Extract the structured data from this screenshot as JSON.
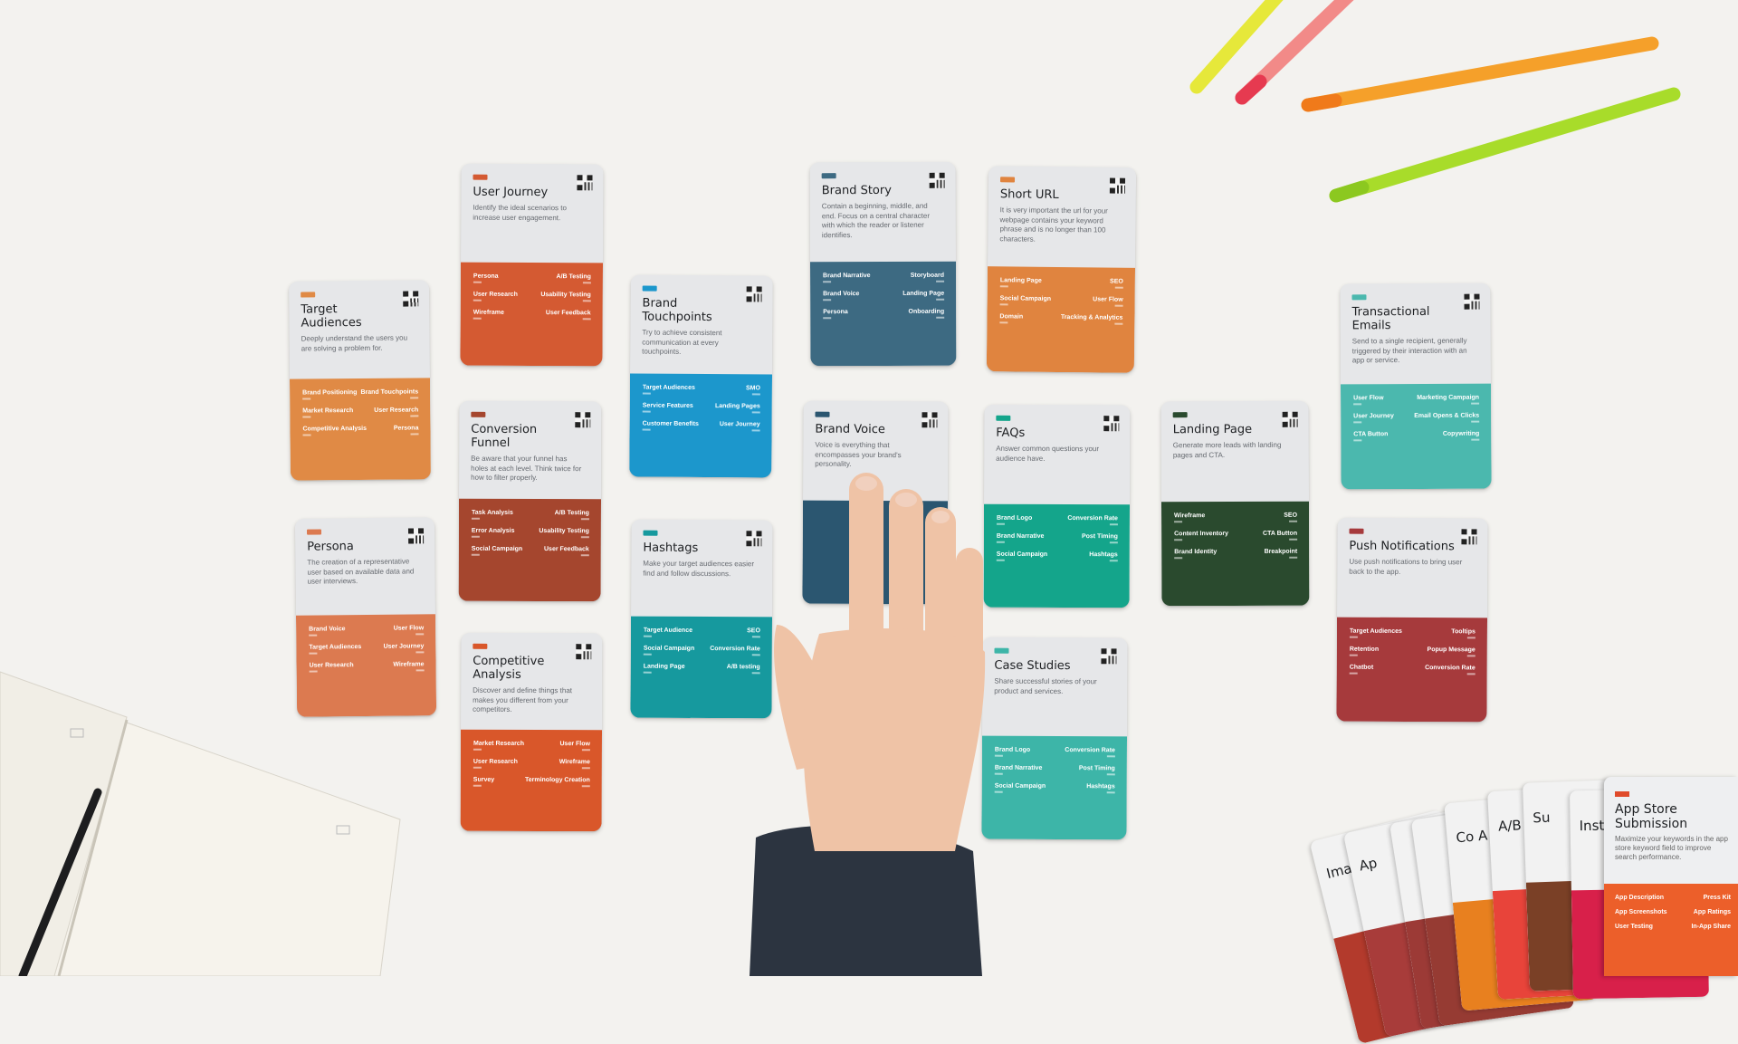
{
  "scene": {
    "background": "#f3f2ef",
    "description_objects": [
      "cards",
      "hand",
      "notebook",
      "pens",
      "card-fan"
    ]
  },
  "cards": [
    {
      "id": "target-audiences",
      "title": "Target Audiences",
      "desc": "Deeply understand the users you are solving a problem for.",
      "color": "#e08a45",
      "items": [
        [
          "Brand Positioning",
          "Brand Touchpoints"
        ],
        [
          "Market Research",
          "User Research"
        ],
        [
          "Competitive Analysis",
          "Persona"
        ]
      ]
    },
    {
      "id": "user-journey",
      "title": "User Journey",
      "desc": "Identify the ideal scenarios to increase user engagement.",
      "color": "#d45a32",
      "items": [
        [
          "Persona",
          "A/B Testing"
        ],
        [
          "User Research",
          "Usability Testing"
        ],
        [
          "Wireframe",
          "User Feedback"
        ]
      ]
    },
    {
      "id": "persona",
      "title": "Persona",
      "desc": "The creation of a representative user based on available data and user interviews.",
      "color": "#dc7a50",
      "items": [
        [
          "Brand Voice",
          "User Flow"
        ],
        [
          "Target Audiences",
          "User Journey"
        ],
        [
          "User Research",
          "Wireframe"
        ]
      ]
    },
    {
      "id": "conversion-funnel",
      "title": "Conversion Funnel",
      "desc": "Be aware that your funnel has holes at each level. Think twice for how to filter properly.",
      "color": "#a5462e",
      "items": [
        [
          "Task Analysis",
          "A/B Testing"
        ],
        [
          "Error Analysis",
          "Usability Testing"
        ],
        [
          "Social Campaign",
          "User Feedback"
        ]
      ]
    },
    {
      "id": "competitive-analysis",
      "title": "Competitive Analysis",
      "desc": "Discover and define things that makes you different from your competitors.",
      "color": "#d9572a",
      "items": [
        [
          "Market Research",
          "User Flow"
        ],
        [
          "User Research",
          "Wireframe"
        ],
        [
          "Survey",
          "Terminology Creation"
        ]
      ]
    },
    {
      "id": "brand-touchpoints",
      "title": "Brand Touchpoints",
      "desc": "Try to achieve consistent communication at every touchpoints.",
      "color": "#1c97cc",
      "items": [
        [
          "Target Audiences",
          "SMO"
        ],
        [
          "Service Features",
          "Landing Pages"
        ],
        [
          "Customer Benefits",
          "User Journey"
        ]
      ]
    },
    {
      "id": "hashtags",
      "title": "Hashtags",
      "desc": "Make your target audiences easier find and follow discussions.",
      "color": "#16999e",
      "items": [
        [
          "Target Audience",
          "SEO"
        ],
        [
          "Social Campaign",
          "Conversion Rate"
        ],
        [
          "Landing Page",
          "A/B testing"
        ]
      ]
    },
    {
      "id": "brand-story",
      "title": "Brand Story",
      "desc": "Contain a beginning, middle, and end. Focus on a central character with which the reader or listener identifies.",
      "color": "#3d6a82",
      "items": [
        [
          "Brand Narrative",
          "Storyboard"
        ],
        [
          "Brand Voice",
          "Landing Page"
        ],
        [
          "Persona",
          "Onboarding"
        ]
      ]
    },
    {
      "id": "brand-voice",
      "title": "Brand Voice",
      "desc": "Voice is everything that encompasses your brand's personality.",
      "color": "#2b5670",
      "items": []
    },
    {
      "id": "short-url",
      "title": "Short URL",
      "desc": "It is very important the url for your webpage contains your keyword phrase and is no longer than 100 characters.",
      "color": "#e0843f",
      "items": [
        [
          "Landing Page",
          "SEO"
        ],
        [
          "Social Campaign",
          "User Flow"
        ],
        [
          "Domain",
          "Tracking & Analytics"
        ]
      ]
    },
    {
      "id": "faqs",
      "title": "FAQs",
      "desc": "Answer common questions your audience have.",
      "color": "#14a58b",
      "items": [
        [
          "Brand Logo",
          "Conversion Rate"
        ],
        [
          "Brand Narrative",
          "Post Timing"
        ],
        [
          "Social Campaign",
          "Hashtags"
        ]
      ]
    },
    {
      "id": "case-studies",
      "title": "Case Studies",
      "desc": "Share successful stories of your product and services.",
      "color": "#3db5a8",
      "items": [
        [
          "Brand Logo",
          "Conversion Rate"
        ],
        [
          "Brand Narrative",
          "Post Timing"
        ],
        [
          "Social Campaign",
          "Hashtags"
        ]
      ]
    },
    {
      "id": "landing-page",
      "title": "Landing Page",
      "desc": "Generate more leads with landing pages and CTA.",
      "color": "#2a4a2e",
      "items": [
        [
          "Wireframe",
          "SEO"
        ],
        [
          "Content Inventory",
          "CTA Button"
        ],
        [
          "Brand Identity",
          "Breakpoint"
        ]
      ]
    },
    {
      "id": "transactional-emails",
      "title": "Transactional Emails",
      "desc": "Send to a single recipient, generally triggered by their interaction with an app or service.",
      "color": "#4bb8ae",
      "items": [
        [
          "User Flow",
          "Marketing Campaign"
        ],
        [
          "User Journey",
          "Email Opens & Clicks"
        ],
        [
          "CTA Button",
          "Copywriting"
        ]
      ]
    },
    {
      "id": "push-notifications",
      "title": "Push Notifications",
      "desc": "Use push notifications to bring user back to the app.",
      "color": "#a63a3c",
      "items": [
        [
          "Target Audiences",
          "Tooltips"
        ],
        [
          "Retention",
          "Popup Message"
        ],
        [
          "Chatbot",
          "Conversion Rate"
        ]
      ]
    }
  ],
  "fan": {
    "partial_cards": [
      {
        "title": "Ima",
        "color": "#b33a2c"
      },
      {
        "title": "Ap",
        "color": "#a83c3a"
      },
      {
        "title": "",
        "color": "#9c3a36"
      },
      {
        "title": "",
        "color": "#963b33"
      },
      {
        "title": "Co A",
        "color": "#e8801f"
      },
      {
        "title": "A/B T",
        "color": "#e8443a"
      },
      {
        "title": "Su",
        "color": "#7a4026"
      },
      {
        "title": "Inst",
        "color": "#d8204a"
      }
    ],
    "front_card": {
      "title": "App Store Submission",
      "desc": "Maximize your keywords in the app store keyword field to improve search performance.",
      "color": "#ec5f2a",
      "items": [
        [
          "App Description",
          "Press Kit"
        ],
        [
          "App Screenshots",
          "App Ratings"
        ],
        [
          "User Testing",
          "In-App Share"
        ]
      ]
    }
  },
  "colors": {
    "skin": "#efc3a6",
    "sleeve": "#2c3440",
    "notebook": "#f5f2ea",
    "pen_yellow": "#e6e83a",
    "pen_red": "#f07a7a",
    "pen_orange": "#f5a02a",
    "pen_green": "#a6dc2a"
  }
}
